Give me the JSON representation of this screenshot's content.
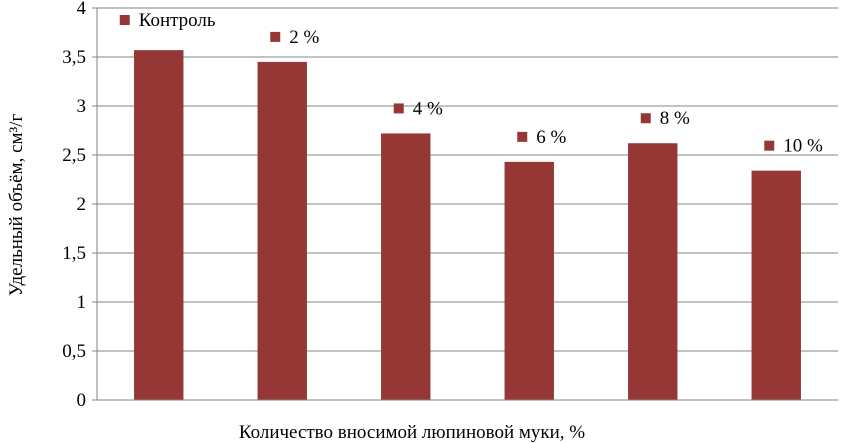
{
  "chart_data": {
    "type": "bar",
    "categories": [
      "Контроль",
      "2 %",
      "4 %",
      "6 %",
      "8 %",
      "10 %"
    ],
    "values": [
      3.57,
      3.45,
      2.72,
      2.43,
      2.62,
      2.34
    ],
    "data_labels": [
      "Контроль",
      "2 %",
      "4 %",
      "6 %",
      "8 %",
      "10 %"
    ],
    "title": "",
    "xlabel": "Количество вносимой люпиновой муки, %",
    "ylabel": "Удельный объём, см³/г",
    "ylim": [
      0,
      4
    ],
    "yticks": [
      {
        "value": 0,
        "label": "0"
      },
      {
        "value": 0.5,
        "label": "0,5"
      },
      {
        "value": 1,
        "label": "1"
      },
      {
        "value": 1.5,
        "label": "1,5"
      },
      {
        "value": 2,
        "label": "2"
      },
      {
        "value": 2.5,
        "label": "2,5"
      },
      {
        "value": 3,
        "label": "3"
      },
      {
        "value": 3.5,
        "label": "3,5"
      },
      {
        "value": 4,
        "label": "4"
      }
    ],
    "grid": true,
    "legend": "none",
    "colors": {
      "bar": "#953735",
      "grid": "#868686",
      "axis": "#868686"
    }
  }
}
